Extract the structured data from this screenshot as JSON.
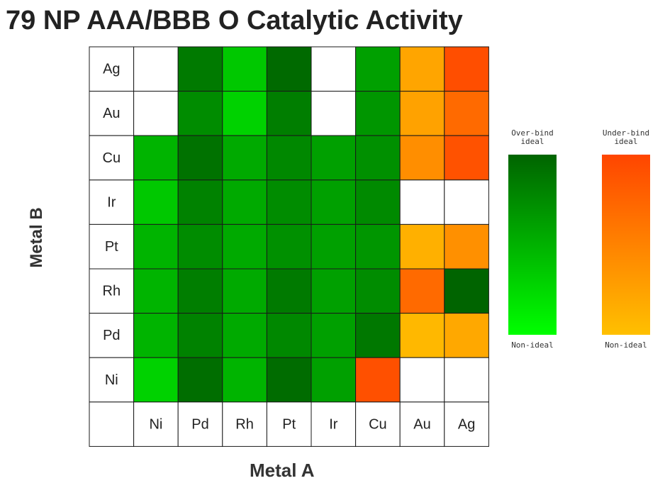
{
  "chart_data": {
    "type": "heatmap",
    "title": "79 NP AAA/BBB O Catalytic Activity",
    "xlabel": "Metal A",
    "ylabel": "Metal B",
    "x_categories": [
      "Ni",
      "Pd",
      "Rh",
      "Pt",
      "Ir",
      "Cu",
      "Au",
      "Ag"
    ],
    "y_categories": [
      "Ag",
      "Au",
      "Cu",
      "Ir",
      "Pt",
      "Rh",
      "Pd",
      "Ni"
    ],
    "cell_colors": [
      [
        null,
        "#007a00",
        "#00c800",
        "#006a00",
        null,
        "#00a000",
        "#ffa500",
        "#ff4e00"
      ],
      [
        null,
        "#008c00",
        "#00d200",
        "#007e00",
        null,
        "#009600",
        "#ffa200",
        "#ff6a00"
      ],
      [
        "#00b400",
        "#007200",
        "#00aa00",
        "#008800",
        "#00a000",
        "#009000",
        "#ff8e00",
        "#ff5200"
      ],
      [
        "#00c800",
        "#008200",
        "#00aa00",
        "#008c00",
        "#00a000",
        "#008a00",
        null,
        null
      ],
      [
        "#00b400",
        "#008c00",
        "#00aa00",
        "#009000",
        "#00a000",
        "#009600",
        "#ffb000",
        "#ff9000"
      ],
      [
        "#00b400",
        "#007e00",
        "#00aa00",
        "#007a00",
        "#00a000",
        "#008c00",
        "#ff6a00",
        "#006400"
      ],
      [
        "#00b400",
        "#008200",
        "#00aa00",
        "#008800",
        "#00a000",
        "#007800",
        "#ffb800",
        "#ffa800"
      ],
      [
        "#00d200",
        "#006e00",
        "#00b400",
        "#006c00",
        "#00a000",
        "#ff5000",
        null,
        null
      ]
    ],
    "legend": [
      {
        "top_line1": "Over-bind",
        "top_line2": "ideal",
        "bottom": "Non-ideal",
        "gradient": [
          "#006400",
          "#00ff00"
        ]
      },
      {
        "top_line1": "Under-bind",
        "top_line2": "ideal",
        "bottom": "Non-ideal",
        "gradient": [
          "#ff4500",
          "#ffc000"
        ]
      }
    ],
    "grid": true
  }
}
